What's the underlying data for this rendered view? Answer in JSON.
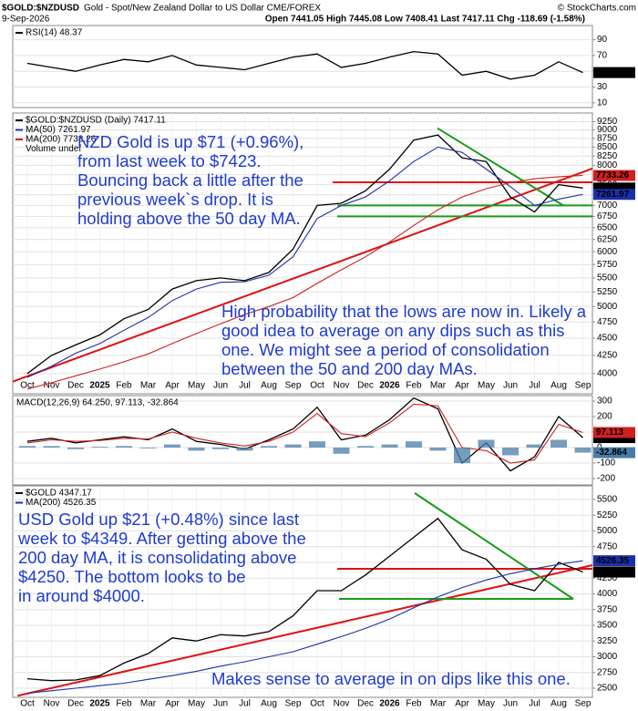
{
  "header": {
    "title": "$GOLD:$NZDUSD",
    "subtitle": "Gold - Spot/New Zealand Dollar to US Dollar CME/FOREX",
    "date": "9-Sep-2026",
    "copyright": "© StockCharts.com",
    "quote": "Open 7441.05 High 7445.08 Low 7408.41 Last 7417.11 Chg -118.69 (-1.58%)"
  },
  "chart_data": [
    {
      "type": "line",
      "series": [
        {
          "name": "RSI(14) 48.37",
          "color": "#000000",
          "end_label": true,
          "values": [
            60,
            55,
            50,
            58,
            65,
            62,
            70,
            58,
            55,
            52,
            60,
            68,
            72,
            55,
            60,
            68,
            75,
            72,
            45,
            50,
            40,
            45,
            62,
            48.37
          ]
        }
      ],
      "ylim": [
        4,
        108
      ],
      "yticks": [
        90,
        70,
        50,
        30,
        10
      ],
      "grid": true
    },
    {
      "type": "line",
      "categories": [
        "Oct",
        "Nov",
        "Dec",
        "2025",
        "Feb",
        "Mar",
        "Apr",
        "May",
        "Jun",
        "Jul",
        "Aug",
        "Sep",
        "Oct",
        "Nov",
        "Dec",
        "2026",
        "Feb",
        "Mar",
        "Apr",
        "May",
        "Jun",
        "Jul",
        "Aug",
        "Sep"
      ],
      "series": [
        {
          "name": "$GOLD:$NZDUSD (Daily) 7417.11",
          "color": "#000000",
          "end_label": true,
          "values": [
            4000,
            4250,
            4400,
            4550,
            4800,
            4950,
            5300,
            5450,
            5500,
            5450,
            5600,
            6050,
            7000,
            7050,
            7350,
            7900,
            8700,
            8850,
            8200,
            8100,
            7200,
            6850,
            7500,
            7417.11
          ]
        },
        {
          "name": "MA(50) 7261.97",
          "color": "#1c2fa8",
          "end_label": true,
          "values": [
            3950,
            4100,
            4280,
            4420,
            4620,
            4820,
            5100,
            5300,
            5420,
            5430,
            5550,
            5900,
            6700,
            7000,
            7200,
            7600,
            8100,
            8500,
            8350,
            7900,
            7450,
            7000,
            7150,
            7261.97
          ]
        },
        {
          "name": "MA(200) 7733.26",
          "color": "#d02020",
          "end_label": true,
          "values": [
            3800,
            3880,
            3970,
            4060,
            4160,
            4270,
            4420,
            4570,
            4720,
            4870,
            5000,
            5150,
            5400,
            5650,
            5900,
            6200,
            6550,
            6900,
            7200,
            7400,
            7550,
            7650,
            7700,
            7733.26
          ]
        }
      ],
      "note": "Volume undef",
      "log_scale": true,
      "ylim": [
        3740,
        9520
      ],
      "yticks": [
        9250,
        9000,
        8750,
        8500,
        8250,
        8000,
        7750,
        7500,
        7250,
        7000,
        6750,
        6500,
        6250,
        6000,
        5750,
        5500,
        5250,
        5000,
        4750,
        4500,
        4250,
        4000
      ],
      "grid": true,
      "legend": "upper left",
      "trendlines": [
        {
          "color": "#e01010",
          "x": [
            -0.6,
            23.4
          ],
          "values": [
            3895,
            7915
          ]
        },
        {
          "color": "#e01010",
          "x": [
            12.64,
            23.4
          ],
          "values": [
            7560,
            7560
          ]
        },
        {
          "color": "#1a9a1a",
          "x": [
            12.83,
            23.4
          ],
          "values": [
            7000,
            7000
          ]
        },
        {
          "color": "#1a9a1a",
          "x": [
            12.83,
            23.4
          ],
          "values": [
            6750,
            6750
          ]
        },
        {
          "color": "#1a9a1a",
          "x": [
            16.98,
            22.19
          ],
          "values": [
            9050,
            7000
          ]
        }
      ],
      "annotations": [
        [
          "NZD Gold is up $71 (+0.96%),",
          "from last week to $7423.",
          "Bouncing back a little after the",
          "previous week`s drop. It is",
          "holding above the 50 day MA."
        ],
        [
          "High probability that the lows are now in. Likely a",
          "good idea to average on any dips such as this",
          "one. We might see a period of consolidation",
          "between the 50 and 200 day MAs."
        ]
      ]
    },
    {
      "type": "line",
      "title": "MACD(12,26,9) 64.250, 97.113, -32.864",
      "series": [
        {
          "color": "#000000",
          "end_label": true,
          "value_labels": {
            "23": "64.250"
          },
          "values": [
            40,
            60,
            30,
            50,
            70,
            50,
            120,
            40,
            20,
            -10,
            50,
            120,
            260,
            50,
            80,
            180,
            320,
            250,
            -100,
            30,
            -150,
            -60,
            200,
            64.25
          ]
        },
        {
          "color": "#d02020",
          "end_label": true,
          "values": [
            30,
            50,
            40,
            45,
            60,
            55,
            100,
            60,
            30,
            10,
            40,
            100,
            220,
            90,
            70,
            160,
            280,
            270,
            0,
            -20,
            -100,
            -80,
            150,
            97.113
          ]
        },
        {
          "color": "#4a7ca8",
          "style": "histogram",
          "end_label": true,
          "values": [
            10,
            10,
            -10,
            5,
            10,
            -5,
            20,
            -20,
            -10,
            -20,
            10,
            20,
            40,
            -40,
            10,
            20,
            40,
            -20,
            -100,
            50,
            -50,
            20,
            50,
            -32.864
          ]
        }
      ],
      "ylim": [
        -241,
        335
      ],
      "yticks": [
        300,
        200,
        100,
        0,
        -100,
        -200
      ],
      "grid": true
    },
    {
      "type": "line",
      "categories": [
        "Oct",
        "Nov",
        "Dec",
        "2025",
        "Feb",
        "Mar",
        "Apr",
        "May",
        "Jun",
        "Jul",
        "Aug",
        "Sep",
        "Oct",
        "Nov",
        "Dec",
        "2026",
        "Feb",
        "Mar",
        "Apr",
        "May",
        "Jun",
        "Jul",
        "Aug",
        "Sep"
      ],
      "series": [
        {
          "name": "$GOLD 4347.17",
          "color": "#000000",
          "end_label": true,
          "values": [
            2650,
            2620,
            2630,
            2700,
            2900,
            3050,
            3300,
            3250,
            3350,
            3330,
            3400,
            3650,
            4050,
            4050,
            4300,
            4600,
            4900,
            5200,
            4700,
            4550,
            4150,
            4050,
            4500,
            4347.17
          ]
        },
        {
          "name": "MA(200) 4526.35",
          "color": "#1c2fa8",
          "end_label": true,
          "values": [
            2420,
            2460,
            2500,
            2540,
            2580,
            2640,
            2700,
            2770,
            2850,
            2920,
            3000,
            3080,
            3200,
            3320,
            3450,
            3600,
            3780,
            3950,
            4100,
            4220,
            4320,
            4400,
            4470,
            4526.35
          ]
        }
      ],
      "ylim": [
        2355,
        5717
      ],
      "yticks": [
        5500,
        5250,
        5000,
        4750,
        4500,
        4250,
        4000,
        3750,
        3500,
        3250,
        3000,
        2750,
        2500
      ],
      "grid": true,
      "legend": "upper left",
      "trendlines": [
        {
          "color": "#e01010",
          "x": [
            -0.4,
            23.4
          ],
          "values": [
            2380,
            4456
          ]
        },
        {
          "color": "#e01010",
          "x": [
            12.83,
            23.4
          ],
          "values": [
            4398,
            4398
          ]
        },
        {
          "color": "#1a9a1a",
          "x": [
            12.9,
            22.6
          ],
          "values": [
            3920,
            3920
          ]
        },
        {
          "color": "#1a9a1a",
          "x": [
            16.04,
            22.6
          ],
          "values": [
            5601,
            3920
          ]
        }
      ],
      "annotations": [
        [
          "USD Gold up $21 (+0.48%) since last",
          "week to $4349. After getting above the",
          "200 day MA, it is consolidating above",
          "$4250. The bottom looks to be",
          "in around $4000."
        ],
        [
          "Makes sense to average in on dips like this one."
        ]
      ]
    }
  ]
}
